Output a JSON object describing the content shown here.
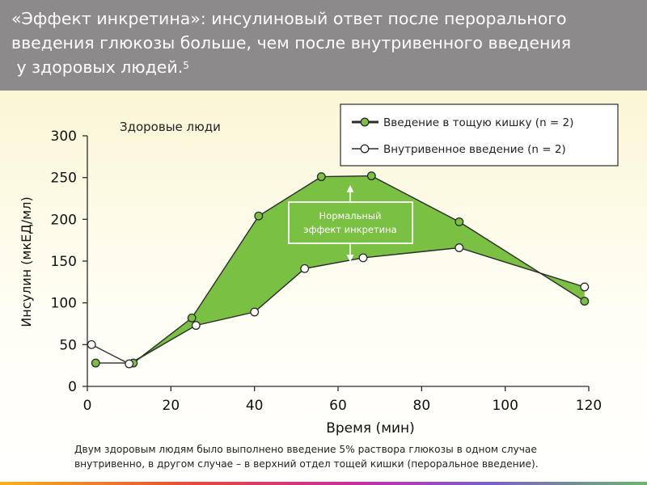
{
  "header": {
    "title_line1": "«Эффект инкретина»: инсулиновый ответ после перорального",
    "title_line2": "введения глюкозы больше, чем после внутривенного введения",
    "title_line3": " у здоровых людей.",
    "title_superscript": "5"
  },
  "footnote": {
    "line1": "Двум здоровым людям было выполнено введение 5% раствора глюкозы в одном случае",
    "line2": "внутривенно, в другом случае – в верхний отдел тощей кишки (пероральное введение)."
  },
  "colors": {
    "header_bg": "#8d8a8c",
    "fill_green": "#7ac143",
    "line_dark": "#2b2b2b",
    "box_border": "#ffffff"
  },
  "chart_data": {
    "type": "line",
    "subtitle": "Здоровые люди",
    "xlabel": "Время (мин)",
    "ylabel": "Инсулин (мкЕД/мл)",
    "xlim": [
      0,
      120
    ],
    "ylim": [
      0,
      300
    ],
    "xticks": [
      0,
      20,
      40,
      60,
      80,
      100,
      120
    ],
    "yticks": [
      0,
      50,
      100,
      150,
      200,
      250,
      300
    ],
    "grid": false,
    "legend_position": "top-right",
    "series": [
      {
        "name": "Введение в тощую кишку (n = 2)",
        "marker": "filled",
        "color": "#7ac143",
        "points": [
          [
            2,
            28
          ],
          [
            11,
            28
          ],
          [
            25,
            82
          ],
          [
            41,
            204
          ],
          [
            56,
            251
          ],
          [
            68,
            252
          ],
          [
            89,
            197
          ],
          [
            119,
            102
          ]
        ]
      },
      {
        "name": "Внутривенное введение (n = 2)",
        "marker": "open",
        "color": "#ffffff",
        "points": [
          [
            1,
            50
          ],
          [
            10,
            27
          ],
          [
            26,
            73
          ],
          [
            40,
            89
          ],
          [
            52,
            141
          ],
          [
            66,
            154
          ],
          [
            89,
            166
          ],
          [
            119,
            119
          ]
        ]
      }
    ],
    "annotation": {
      "line1": "Нормальный",
      "line2": "эффект инкретина"
    }
  }
}
